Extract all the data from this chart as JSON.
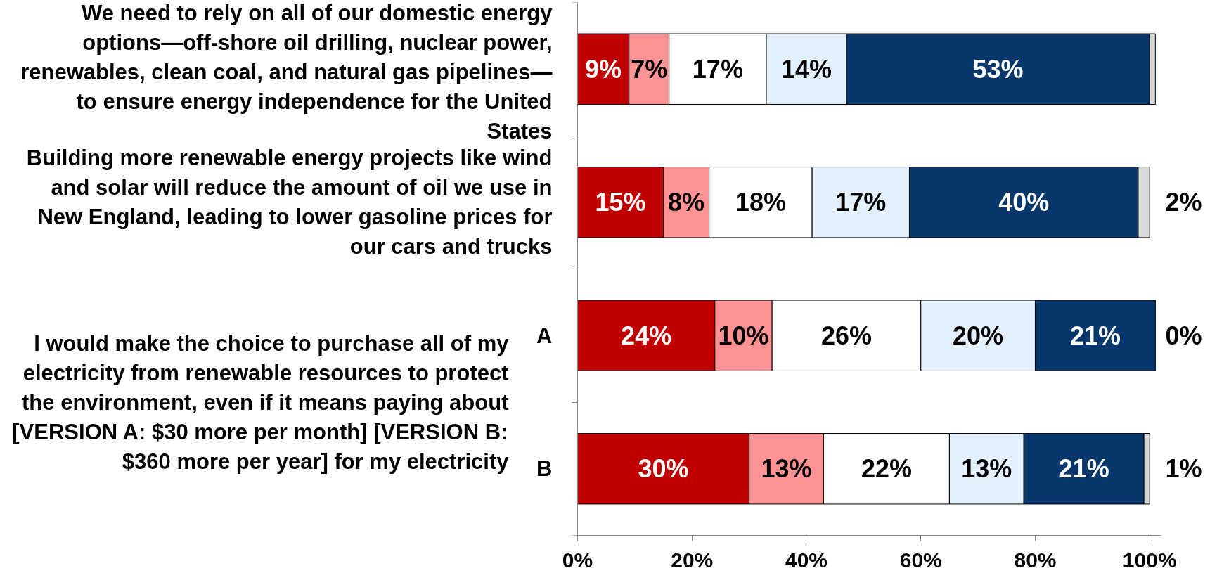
{
  "chart_data": {
    "type": "bar",
    "orientation": "horizontal",
    "stacked": true,
    "categories": [
      "We need to rely on all of our domestic energy options—off-shore oil drilling, nuclear power, renewables, clean coal, and natural gas pipelines—to ensure energy independence for the United States",
      "Building more renewable energy projects like wind and solar will reduce the amount of oil we use in New England, leading to lower gasoline prices for our cars and trucks",
      "A",
      "B"
    ],
    "series": [
      {
        "color": "#c00000",
        "values": [
          9,
          15,
          24,
          30
        ],
        "value_labels": [
          "9%",
          "15%",
          "24%",
          "30%"
        ]
      },
      {
        "color": "#ff9393",
        "values": [
          7,
          8,
          10,
          13
        ],
        "value_labels": [
          "7%",
          "8%",
          "10%",
          "13%"
        ]
      },
      {
        "color": "#ffffff",
        "values": [
          17,
          18,
          26,
          22
        ],
        "value_labels": [
          "17%",
          "18%",
          "26%",
          "22%"
        ]
      },
      {
        "color": "#e3f0fd",
        "values": [
          14,
          17,
          20,
          13
        ],
        "value_labels": [
          "14%",
          "17%",
          "20%",
          "13%"
        ]
      },
      {
        "color": "#08376b",
        "values": [
          53,
          40,
          21,
          21
        ],
        "value_labels": [
          "53%",
          "40%",
          "21%",
          "21%"
        ]
      },
      {
        "color": "#d9d9d9",
        "values": [
          1,
          2,
          0,
          1
        ],
        "value_labels": [
          null,
          "2%",
          "0%",
          "1%"
        ]
      }
    ],
    "xlim": [
      0,
      102
    ],
    "xticks": [
      {
        "value": 0,
        "label": "0%"
      },
      {
        "value": 20,
        "label": "20%"
      },
      {
        "value": 40,
        "label": "40%"
      },
      {
        "value": 60,
        "label": "60%"
      },
      {
        "value": 80,
        "label": "80%"
      },
      {
        "value": 100,
        "label": "100%"
      }
    ],
    "annotations": [
      "I would make the choice to purchase all of my electricity from renewable resources to protect the environment, even if it means paying about [VERSION A: $30 more per month] [VERSION B: $360 more per year] for my electricity"
    ],
    "grid": false
  }
}
